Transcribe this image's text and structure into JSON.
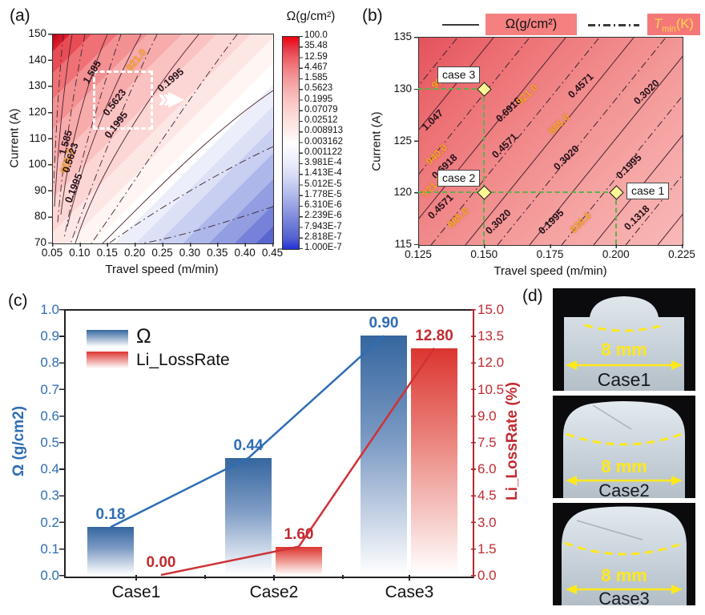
{
  "panel_a": {
    "tag": "(a)",
    "xlabel": "Travel speed (m/min)",
    "ylabel": "Current (A)",
    "x_ticks": [
      "0.05",
      "0.10",
      "0.15",
      "0.20",
      "0.25",
      "0.30",
      "0.35",
      "0.40",
      "0.45"
    ],
    "y_ticks": [
      "150",
      "140",
      "130",
      "120",
      "110",
      "100",
      "90",
      "80",
      "70"
    ],
    "colorbar_title": "Ω(g/cm²)",
    "colorbar_ticks": [
      "100.0",
      "35.48",
      "12.59",
      "4.467",
      "1.585",
      "0.5623",
      "0.1995",
      "0.07079",
      "0.02512",
      "0.008913",
      "0.003162",
      "0.001122",
      "3.981E-4",
      "1.413E-4",
      "5.012E-5",
      "1.778E-5",
      "6.310E-6",
      "2.239E-6",
      "7.943E-7",
      "2.818E-7",
      "1.000E-7"
    ],
    "contour_labels": [
      "1.585",
      "0.5623",
      "0.1995",
      "0.1995",
      "1.585",
      "0.5623",
      "0.1995"
    ],
    "tmin_labels": [
      "956.3",
      "921.0"
    ]
  },
  "panel_b": {
    "tag": "(b)",
    "xlabel": "Travel speed (m/min)",
    "ylabel": "Current (A)",
    "x_ticks": [
      "0.125",
      "0.150",
      "0.175",
      "0.200",
      "0.225"
    ],
    "y_ticks": [
      "135",
      "130",
      "125",
      "120",
      "115"
    ],
    "legend": {
      "omega": "Ω(g/cm²)",
      "tmin_t": "T",
      "tmin_sub": "min",
      "tmin_k": "(K)"
    },
    "contour_omega": [
      "1.047",
      "0.6918",
      "0.6918",
      "0.4571",
      "0.4571",
      "0.4571",
      "0.3020",
      "0.3020",
      "0.3020",
      "0.1995",
      "0.1995",
      "0.1318"
    ],
    "contour_tmin": [
      "995.0",
      "940.0",
      "921.0",
      "921.0",
      "885.0",
      "885.0",
      "830.0"
    ],
    "cases": [
      {
        "label": "case 1"
      },
      {
        "label": "case 2"
      },
      {
        "label": "case 3"
      }
    ]
  },
  "panel_c": {
    "tag": "(c)",
    "ylabel_left": "Ω (g/cm2)",
    "ylabel_right": "Li_LossRate (%)",
    "yticks_left": [
      "1.0",
      "0.9",
      "0.8",
      "0.7",
      "0.6",
      "0.5",
      "0.4",
      "0.3",
      "0.2",
      "0.1",
      "0.0"
    ],
    "yticks_right": [
      "15.0",
      "13.5",
      "12.0",
      "10.5",
      "9.0",
      "7.5",
      "6.0",
      "4.5",
      "3.0",
      "1.5",
      "0.0"
    ],
    "categories": [
      "Case1",
      "Case2",
      "Case3"
    ],
    "legend": {
      "omega": "Ω",
      "loss": "Li_LossRate"
    },
    "value_labels_omega": [
      "0.18",
      "0.44",
      "0.90"
    ],
    "value_labels_loss": [
      "0.00",
      "1.60",
      "12.80"
    ]
  },
  "panel_d": {
    "tag": "(d)",
    "photos": [
      {
        "label": "Case1",
        "scale": "8 mm"
      },
      {
        "label": "Case2",
        "scale": "8 mm"
      },
      {
        "label": "Case3",
        "scale": "8 mm"
      }
    ]
  },
  "colors": {
    "omega_blue": "#2e6db4",
    "loss_red": "#c22a30",
    "tmin_yellow": "#f5a623",
    "case_marker": "#fdf795",
    "guide_green": "#5db04b",
    "legend_box_bg": "#f58080"
  },
  "chart_data": [
    {
      "type": "heatmap",
      "subtype": "filled-contour",
      "xlabel": "Travel speed (m/min)",
      "ylabel": "Current (A)",
      "x_range": [
        0.05,
        0.45
      ],
      "y_range": [
        70,
        150
      ],
      "colorbar_label": "Ω(g/cm²)",
      "colorbar_ticks": [
        100.0,
        35.48,
        12.59,
        4.467,
        1.585,
        0.5623,
        0.1995,
        0.07079,
        0.02512,
        0.008913,
        0.003162,
        0.001122,
        0.0003981,
        0.0001413,
        5.012e-05,
        1.778e-05,
        6.31e-06,
        2.239e-06,
        7.943e-07,
        2.818e-07,
        1e-07
      ],
      "omega_contour_labels": [
        1.585,
        0.5623,
        0.1995
      ],
      "tmin_contour_labels": [
        956.3,
        921.0
      ],
      "zoom_box": {
        "x": [
          0.125,
          0.225
        ],
        "y": [
          115,
          136
        ]
      }
    },
    {
      "type": "heatmap",
      "subtype": "contour",
      "xlabel": "Travel speed (m/min)",
      "ylabel": "Current (A)",
      "x_range": [
        0.125,
        0.225
      ],
      "y_range": [
        115,
        135
      ],
      "legend": [
        "Ω(g/cm²)",
        "Tmin(K)"
      ],
      "omega_levels": [
        1.047,
        0.6918,
        0.4571,
        0.302,
        0.1995,
        0.1318
      ],
      "tmin_levels": [
        995.0,
        940.0,
        921.0,
        885.0,
        830.0
      ],
      "cases": [
        {
          "label": "case 1",
          "travel_speed": 0.2,
          "current": 120
        },
        {
          "label": "case 2",
          "travel_speed": 0.15,
          "current": 120
        },
        {
          "label": "case 3",
          "travel_speed": 0.15,
          "current": 130
        }
      ]
    },
    {
      "type": "bar",
      "categories": [
        "Case1",
        "Case2",
        "Case3"
      ],
      "series": [
        {
          "name": "Ω",
          "axis": "left",
          "values": [
            0.18,
            0.44,
            0.9
          ]
        },
        {
          "name": "Li_LossRate",
          "axis": "right",
          "values": [
            0.0,
            1.6,
            12.8
          ]
        }
      ],
      "ylabel_left": "Ω (g/cm2)",
      "ylabel_right": "Li_LossRate (%)",
      "ylim_left": [
        0.0,
        1.0
      ],
      "ylim_right": [
        0.0,
        15.0
      ],
      "grid": false,
      "legend_position": "top-left"
    }
  ]
}
